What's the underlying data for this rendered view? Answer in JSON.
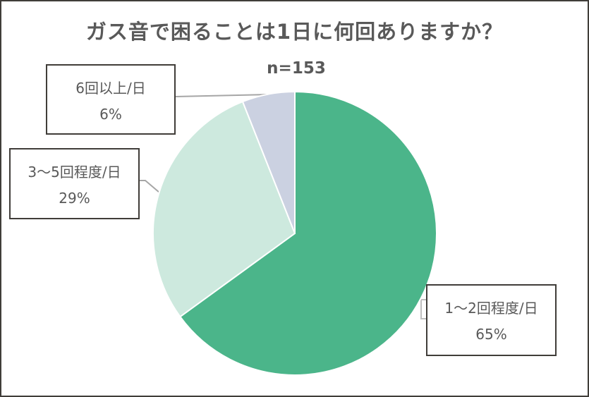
{
  "chart_data": {
    "type": "pie",
    "title": "ガス音で困ることは1日に何回ありますか？",
    "subtitle": "n=153",
    "categories": [
      "1〜2回程度/日",
      "3〜5回程度/日",
      "6回以上/日"
    ],
    "values": [
      65,
      29,
      6
    ],
    "unit": "%",
    "colors": [
      "#4bb58a",
      "#cde9de",
      "#cbd1e1"
    ],
    "legend": "none (data labels with leader lines)",
    "start_angle": "12 o'clock, clockwise"
  },
  "labels": [
    {
      "category": "6回以上/日",
      "percent": "6%"
    },
    {
      "category": "3〜5回程度/日",
      "percent": "29%"
    },
    {
      "category": "1〜2回程度/日",
      "percent": "65%"
    }
  ]
}
